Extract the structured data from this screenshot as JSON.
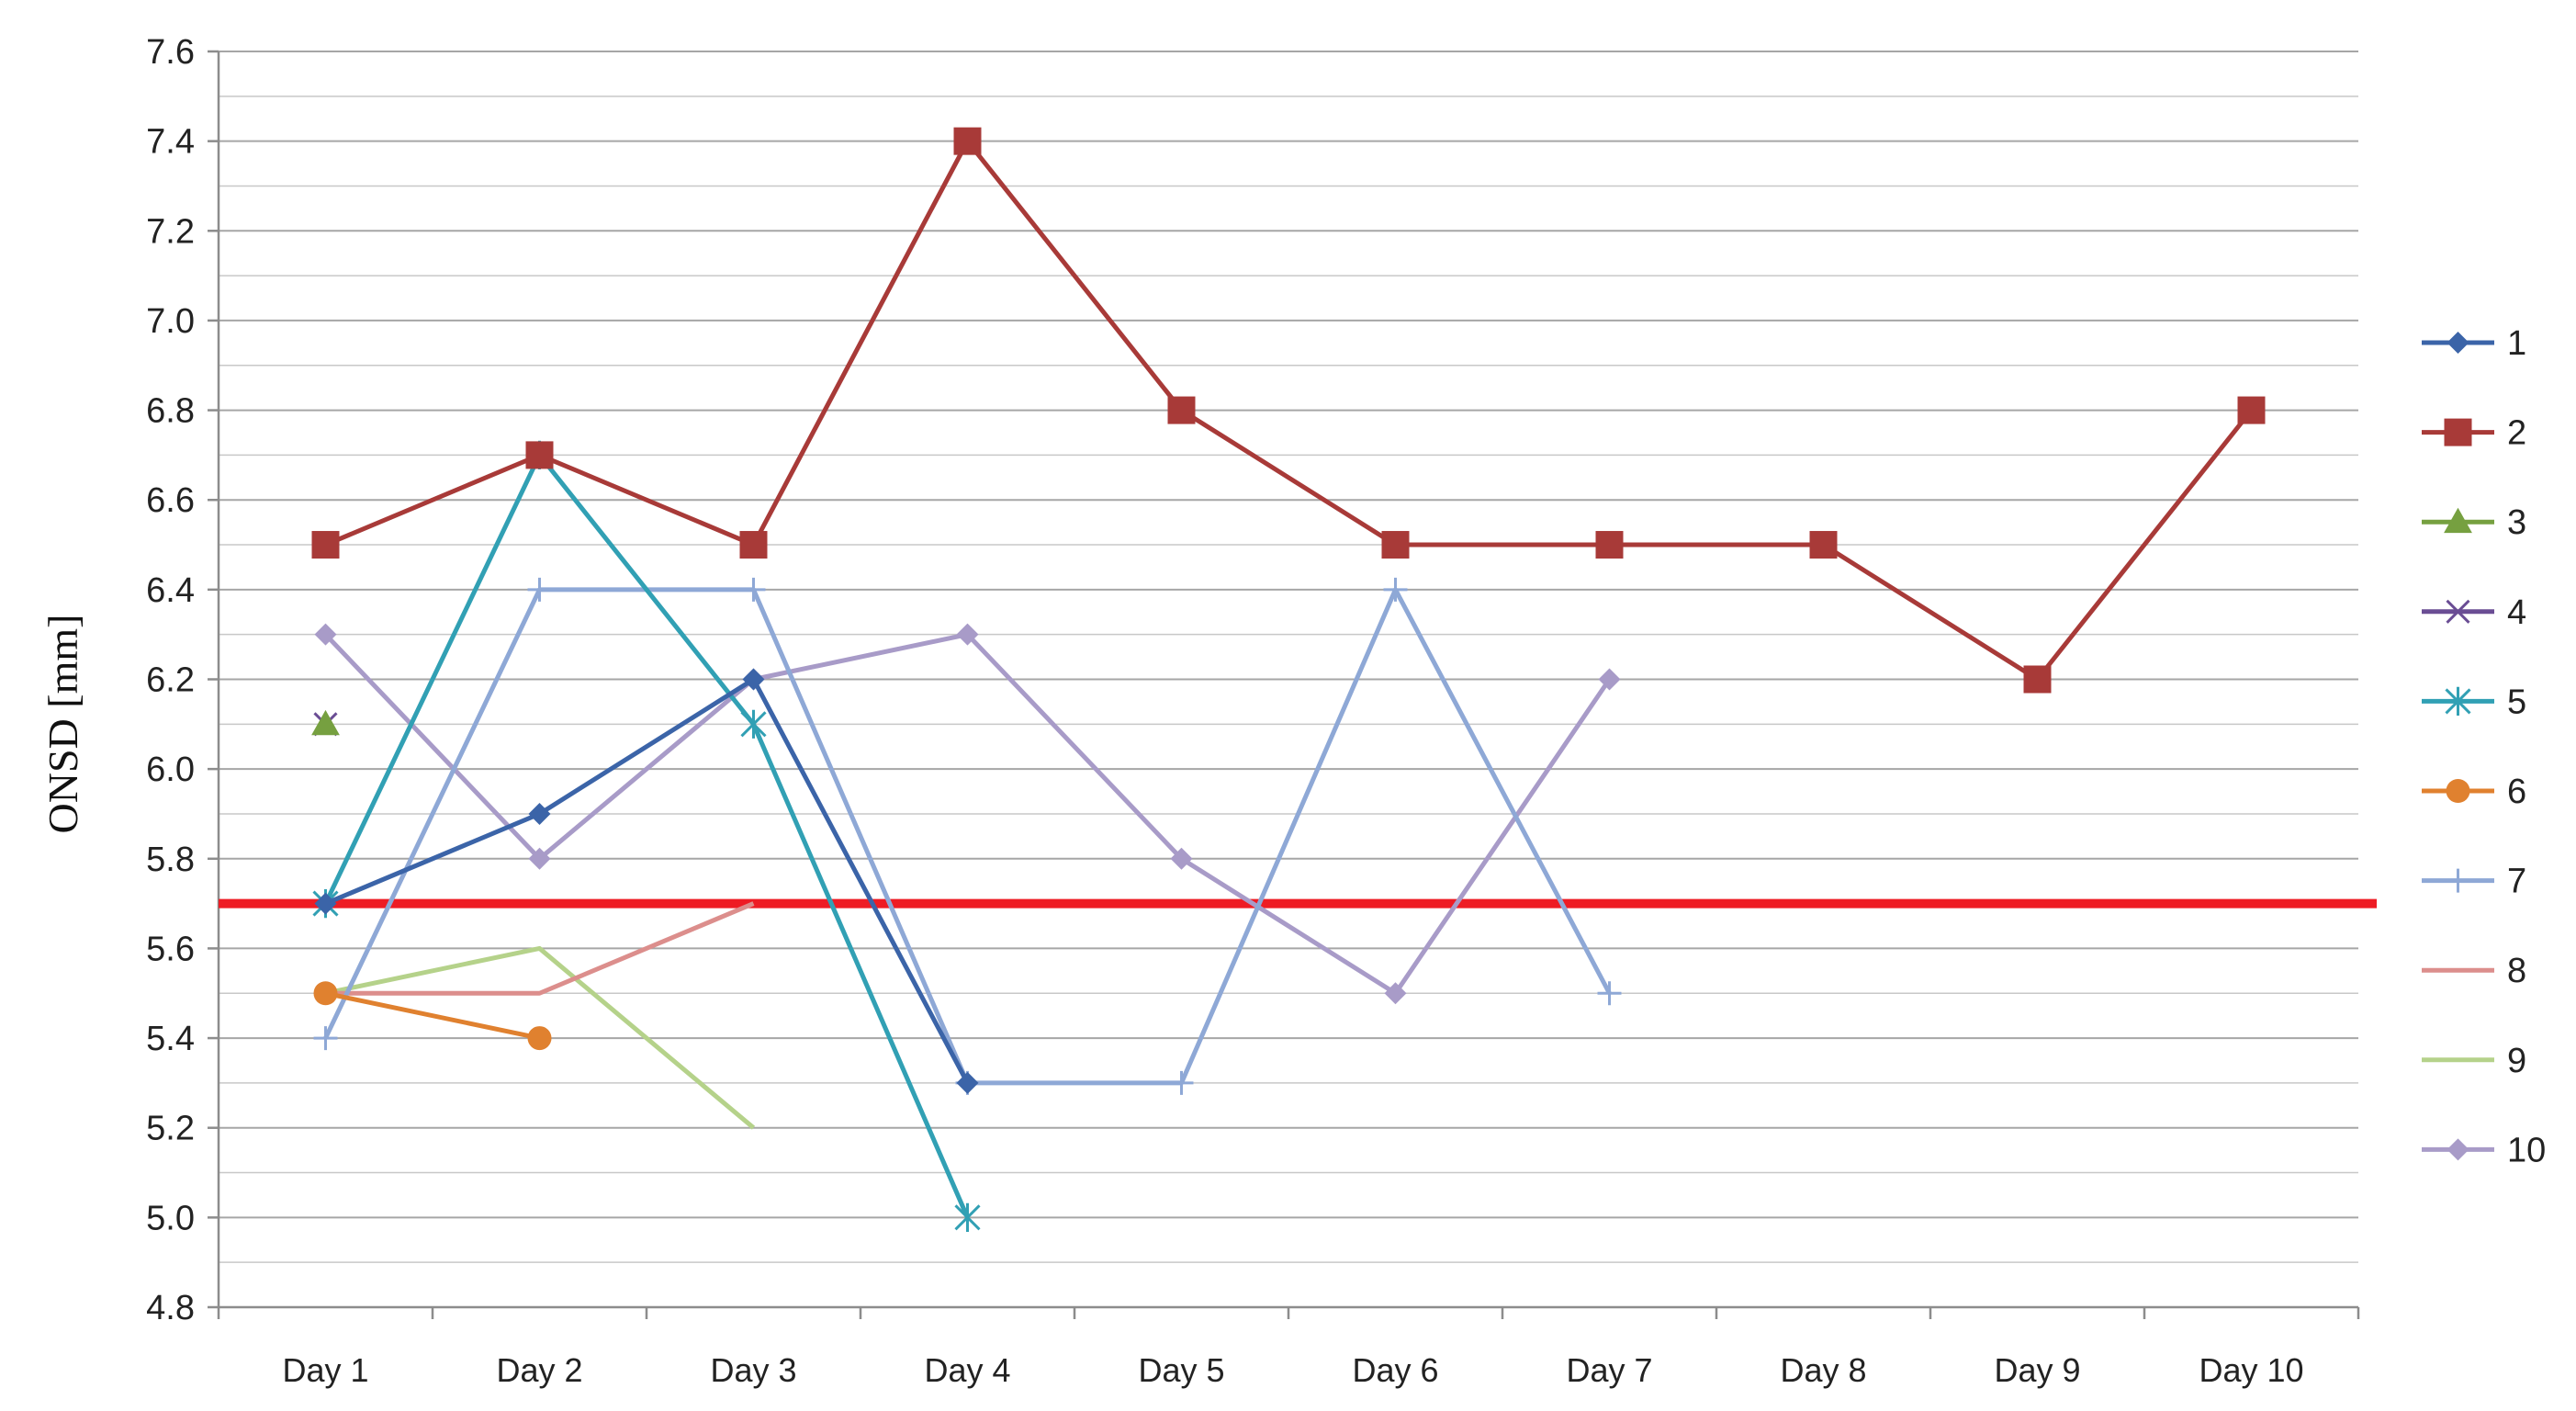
{
  "chart_data": {
    "type": "line",
    "title": "",
    "xlabel": "",
    "ylabel": "ONSD [mm]",
    "categories": [
      "Day 1",
      "Day 2",
      "Day 3",
      "Day 4",
      "Day 5",
      "Day 6",
      "Day 7",
      "Day 8",
      "Day 9",
      "Day 10"
    ],
    "ylim": [
      4.8,
      7.6
    ],
    "yticks": [
      "4.8",
      "5.0",
      "5.2",
      "5.4",
      "5.6",
      "5.8",
      "6.0",
      "6.2",
      "6.4",
      "6.6",
      "6.8",
      "7.0",
      "7.2",
      "7.4",
      "7.6"
    ],
    "grid": true,
    "legend_position": "right",
    "reference_line": {
      "value": 5.7,
      "color": "#ee1c24"
    },
    "series": [
      {
        "name": "1",
        "color": "#3b64a8",
        "marker": "diamond",
        "values": [
          5.7,
          5.9,
          6.2,
          5.3,
          null,
          null,
          null,
          null,
          null,
          null
        ]
      },
      {
        "name": "2",
        "color": "#a83a38",
        "marker": "square",
        "values": [
          6.5,
          6.7,
          6.5,
          7.4,
          6.8,
          6.5,
          6.5,
          6.5,
          6.2,
          6.8
        ]
      },
      {
        "name": "3",
        "color": "#76a040",
        "marker": "triangle",
        "values": [
          6.1,
          null,
          null,
          null,
          null,
          null,
          null,
          null,
          null,
          null
        ]
      },
      {
        "name": "4",
        "color": "#6a4d94",
        "marker": "x",
        "values": [
          6.1,
          null,
          null,
          null,
          null,
          null,
          null,
          null,
          null,
          null
        ]
      },
      {
        "name": "5",
        "color": "#31a0b4",
        "marker": "star",
        "values": [
          5.7,
          6.7,
          6.1,
          5.0,
          null,
          null,
          null,
          null,
          null,
          null
        ]
      },
      {
        "name": "6",
        "color": "#e0812f",
        "marker": "circle",
        "values": [
          5.5,
          5.4,
          null,
          null,
          null,
          null,
          null,
          null,
          null,
          null
        ]
      },
      {
        "name": "7",
        "color": "#8ea8d6",
        "marker": "plus",
        "values": [
          5.4,
          6.4,
          6.4,
          5.3,
          5.3,
          6.4,
          5.5,
          null,
          null,
          null
        ]
      },
      {
        "name": "8",
        "color": "#dc8e8c",
        "marker": "none",
        "values": [
          5.5,
          5.5,
          5.7,
          null,
          null,
          null,
          null,
          null,
          null,
          null
        ]
      },
      {
        "name": "9",
        "color": "#b5d28a",
        "marker": "none",
        "values": [
          5.5,
          5.6,
          5.2,
          null,
          null,
          null,
          null,
          null,
          null,
          null
        ]
      },
      {
        "name": "10",
        "color": "#a89bc8",
        "marker": "diamond",
        "values": [
          6.3,
          5.8,
          6.2,
          6.3,
          5.8,
          5.5,
          6.2,
          null,
          null,
          null
        ]
      }
    ]
  }
}
